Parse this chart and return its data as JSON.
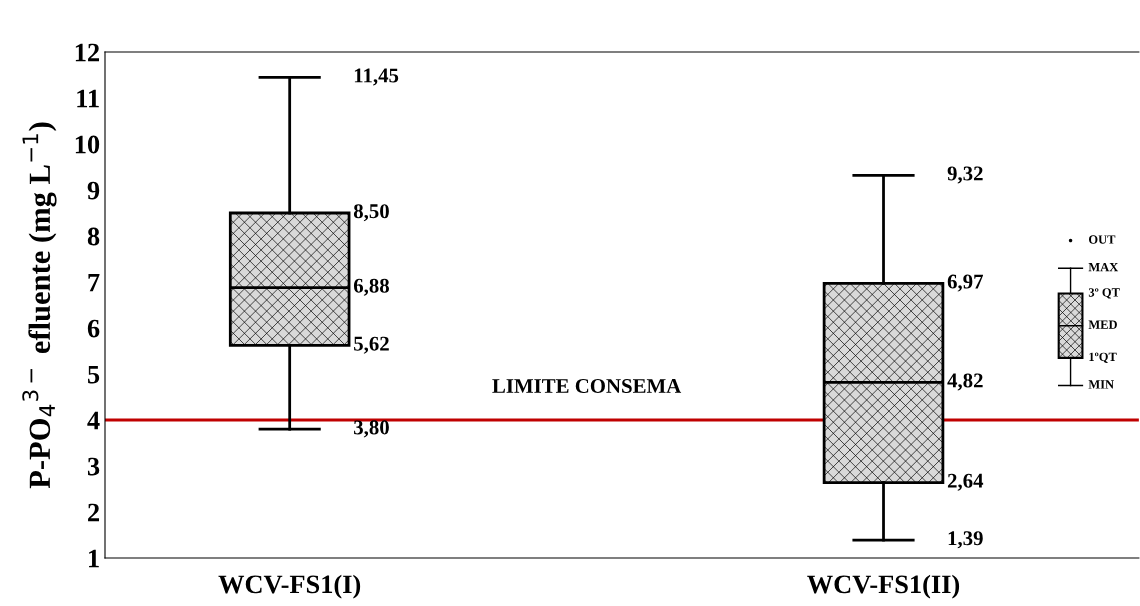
{
  "chart_data": {
    "type": "box",
    "ylabel": "P-PO$_{4}$$^{3−}$ efluente (mg L$^{−1}$)",
    "categories": [
      "WCV-FS1(I)",
      "WCV-FS1(II)"
    ],
    "boxes": [
      {
        "low": 3.8,
        "q1": 5.62,
        "median": 6.88,
        "q3": 8.5,
        "high": 11.45
      },
      {
        "low": 1.39,
        "q1": 2.64,
        "median": 4.82,
        "q3": 6.97,
        "high": 9.32
      }
    ],
    "ylim": [
      1,
      12
    ],
    "yticks": [
      1,
      2,
      3,
      4,
      5,
      6,
      7,
      8,
      9,
      10,
      11,
      12
    ],
    "grid": false,
    "ref_lines": [
      {
        "axis": "y",
        "value": 4,
        "label": "LIMITE CONSEMA",
        "color": "#c00000"
      }
    ],
    "annotations": [
      "11,45",
      "8,50",
      "6,88",
      "5,62",
      "3,80",
      "9,32",
      "6,97",
      "4,82",
      "2,64",
      "1,39",
      "OUT",
      "MAX",
      "3º QT",
      "MED",
      "1ºQT",
      "MIN"
    ]
  }
}
